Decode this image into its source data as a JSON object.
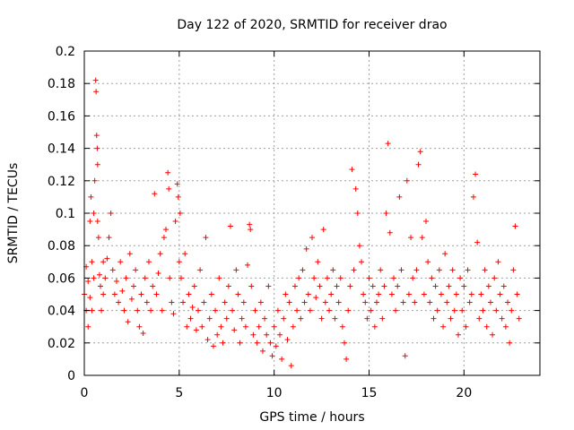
{
  "chart_data": {
    "type": "scatter",
    "title": "Day 122 of 2020, SRMTID for receiver drao",
    "xlabel": "GPS time / hours",
    "ylabel": "SRMTID / TECUs",
    "xlim": [
      0,
      24
    ],
    "ylim": [
      0,
      0.2
    ],
    "xticks": [
      0,
      5,
      10,
      15,
      20
    ],
    "xtick_labels": [
      "0",
      "5",
      "10",
      "15",
      "20"
    ],
    "yticks": [
      0,
      0.02,
      0.04,
      0.06,
      0.08,
      0.1,
      0.12,
      0.14,
      0.16,
      0.18,
      0.2
    ],
    "ytick_labels": [
      "0",
      "0.02",
      "0.04",
      "0.06",
      "0.08",
      "0.1",
      "0.12",
      "0.14",
      "0.16",
      "0.18",
      "0.2"
    ],
    "grid": true,
    "marker": "plus",
    "color": "#ff0000",
    "series": [
      {
        "name": "SRMTID",
        "points": [
          [
            0.0,
            0.05
          ],
          [
            0.1,
            0.04
          ],
          [
            0.1,
            0.067
          ],
          [
            0.2,
            0.058
          ],
          [
            0.2,
            0.03
          ],
          [
            0.3,
            0.095
          ],
          [
            0.3,
            0.048
          ],
          [
            0.35,
            0.11
          ],
          [
            0.4,
            0.07
          ],
          [
            0.4,
            0.04
          ],
          [
            0.5,
            0.1
          ],
          [
            0.5,
            0.06
          ],
          [
            0.55,
            0.12
          ],
          [
            0.6,
            0.182
          ],
          [
            0.62,
            0.175
          ],
          [
            0.65,
            0.148
          ],
          [
            0.68,
            0.14
          ],
          [
            0.7,
            0.13
          ],
          [
            0.7,
            0.095
          ],
          [
            0.75,
            0.085
          ],
          [
            0.8,
            0.062
          ],
          [
            0.85,
            0.055
          ],
          [
            0.9,
            0.04
          ],
          [
            1.0,
            0.07
          ],
          [
            1.0,
            0.05
          ],
          [
            1.1,
            0.06
          ],
          [
            1.2,
            0.072
          ],
          [
            1.3,
            0.085
          ],
          [
            1.4,
            0.1
          ],
          [
            1.5,
            0.065
          ],
          [
            1.6,
            0.05
          ],
          [
            1.7,
            0.058
          ],
          [
            1.8,
            0.045
          ],
          [
            1.9,
            0.07
          ],
          [
            2.0,
            0.052
          ],
          [
            2.1,
            0.04
          ],
          [
            2.2,
            0.06
          ],
          [
            2.3,
            0.033
          ],
          [
            2.4,
            0.075
          ],
          [
            2.5,
            0.047
          ],
          [
            2.6,
            0.055
          ],
          [
            2.7,
            0.065
          ],
          [
            2.8,
            0.04
          ],
          [
            2.9,
            0.03
          ],
          [
            3.0,
            0.05
          ],
          [
            3.1,
            0.026
          ],
          [
            3.2,
            0.06
          ],
          [
            3.3,
            0.045
          ],
          [
            3.4,
            0.07
          ],
          [
            3.5,
            0.04
          ],
          [
            3.6,
            0.055
          ],
          [
            3.7,
            0.112
          ],
          [
            3.8,
            0.05
          ],
          [
            3.9,
            0.063
          ],
          [
            4.0,
            0.075
          ],
          [
            4.1,
            0.04
          ],
          [
            4.2,
            0.085
          ],
          [
            4.3,
            0.09
          ],
          [
            4.4,
            0.125
          ],
          [
            4.45,
            0.115
          ],
          [
            4.5,
            0.06
          ],
          [
            4.6,
            0.045
          ],
          [
            4.7,
            0.038
          ],
          [
            4.8,
            0.095
          ],
          [
            4.9,
            0.118
          ],
          [
            4.95,
            0.11
          ],
          [
            5.0,
            0.07
          ],
          [
            5.05,
            0.1
          ],
          [
            5.1,
            0.06
          ],
          [
            5.2,
            0.045
          ],
          [
            5.3,
            0.075
          ],
          [
            5.4,
            0.03
          ],
          [
            5.5,
            0.05
          ],
          [
            5.6,
            0.035
          ],
          [
            5.7,
            0.042
          ],
          [
            5.8,
            0.055
          ],
          [
            5.9,
            0.028
          ],
          [
            6.0,
            0.04
          ],
          [
            6.1,
            0.065
          ],
          [
            6.2,
            0.03
          ],
          [
            6.3,
            0.045
          ],
          [
            6.4,
            0.085
          ],
          [
            6.5,
            0.022
          ],
          [
            6.6,
            0.035
          ],
          [
            6.7,
            0.05
          ],
          [
            6.8,
            0.018
          ],
          [
            6.9,
            0.04
          ],
          [
            7.0,
            0.025
          ],
          [
            7.1,
            0.06
          ],
          [
            7.2,
            0.03
          ],
          [
            7.3,
            0.02
          ],
          [
            7.4,
            0.045
          ],
          [
            7.5,
            0.035
          ],
          [
            7.6,
            0.055
          ],
          [
            7.7,
            0.092
          ],
          [
            7.8,
            0.04
          ],
          [
            7.9,
            0.028
          ],
          [
            8.0,
            0.065
          ],
          [
            8.1,
            0.05
          ],
          [
            8.2,
            0.02
          ],
          [
            8.3,
            0.035
          ],
          [
            8.4,
            0.045
          ],
          [
            8.5,
            0.03
          ],
          [
            8.6,
            0.068
          ],
          [
            8.7,
            0.093
          ],
          [
            8.75,
            0.09
          ],
          [
            8.8,
            0.055
          ],
          [
            8.9,
            0.025
          ],
          [
            9.0,
            0.04
          ],
          [
            9.1,
            0.02
          ],
          [
            9.2,
            0.03
          ],
          [
            9.3,
            0.045
          ],
          [
            9.4,
            0.015
          ],
          [
            9.5,
            0.035
          ],
          [
            9.6,
            0.025
          ],
          [
            9.7,
            0.055
          ],
          [
            9.8,
            0.02
          ],
          [
            9.9,
            0.012
          ],
          [
            10.0,
            0.03
          ],
          [
            10.1,
            0.018
          ],
          [
            10.2,
            0.04
          ],
          [
            10.3,
            0.025
          ],
          [
            10.4,
            0.01
          ],
          [
            10.5,
            0.035
          ],
          [
            10.6,
            0.05
          ],
          [
            10.7,
            0.022
          ],
          [
            10.8,
            0.045
          ],
          [
            10.9,
            0.006
          ],
          [
            11.0,
            0.03
          ],
          [
            11.1,
            0.055
          ],
          [
            11.2,
            0.04
          ],
          [
            11.3,
            0.06
          ],
          [
            11.4,
            0.035
          ],
          [
            11.5,
            0.065
          ],
          [
            11.6,
            0.045
          ],
          [
            11.7,
            0.078
          ],
          [
            11.8,
            0.05
          ],
          [
            11.9,
            0.04
          ],
          [
            12.0,
            0.085
          ],
          [
            12.1,
            0.06
          ],
          [
            12.2,
            0.048
          ],
          [
            12.3,
            0.07
          ],
          [
            12.4,
            0.055
          ],
          [
            12.5,
            0.035
          ],
          [
            12.6,
            0.09
          ],
          [
            12.7,
            0.045
          ],
          [
            12.8,
            0.06
          ],
          [
            12.9,
            0.04
          ],
          [
            13.0,
            0.05
          ],
          [
            13.1,
            0.065
          ],
          [
            13.2,
            0.035
          ],
          [
            13.3,
            0.055
          ],
          [
            13.4,
            0.045
          ],
          [
            13.5,
            0.06
          ],
          [
            13.6,
            0.03
          ],
          [
            13.7,
            0.02
          ],
          [
            13.8,
            0.01
          ],
          [
            13.9,
            0.04
          ],
          [
            14.0,
            0.055
          ],
          [
            14.1,
            0.127
          ],
          [
            14.2,
            0.065
          ],
          [
            14.3,
            0.115
          ],
          [
            14.4,
            0.1
          ],
          [
            14.5,
            0.08
          ],
          [
            14.6,
            0.07
          ],
          [
            14.7,
            0.05
          ],
          [
            14.8,
            0.045
          ],
          [
            14.9,
            0.035
          ],
          [
            15.0,
            0.06
          ],
          [
            15.1,
            0.04
          ],
          [
            15.2,
            0.055
          ],
          [
            15.3,
            0.03
          ],
          [
            15.4,
            0.045
          ],
          [
            15.5,
            0.05
          ],
          [
            15.6,
            0.065
          ],
          [
            15.7,
            0.035
          ],
          [
            15.8,
            0.055
          ],
          [
            15.9,
            0.1
          ],
          [
            16.0,
            0.143
          ],
          [
            16.1,
            0.088
          ],
          [
            16.2,
            0.05
          ],
          [
            16.3,
            0.06
          ],
          [
            16.4,
            0.04
          ],
          [
            16.5,
            0.055
          ],
          [
            16.6,
            0.11
          ],
          [
            16.7,
            0.065
          ],
          [
            16.8,
            0.045
          ],
          [
            16.9,
            0.012
          ],
          [
            17.0,
            0.12
          ],
          [
            17.1,
            0.05
          ],
          [
            17.2,
            0.085
          ],
          [
            17.3,
            0.06
          ],
          [
            17.4,
            0.045
          ],
          [
            17.5,
            0.065
          ],
          [
            17.6,
            0.13
          ],
          [
            17.7,
            0.138
          ],
          [
            17.8,
            0.085
          ],
          [
            17.9,
            0.05
          ],
          [
            18.0,
            0.095
          ],
          [
            18.1,
            0.07
          ],
          [
            18.2,
            0.045
          ],
          [
            18.3,
            0.06
          ],
          [
            18.4,
            0.035
          ],
          [
            18.5,
            0.055
          ],
          [
            18.6,
            0.04
          ],
          [
            18.7,
            0.065
          ],
          [
            18.8,
            0.05
          ],
          [
            18.9,
            0.03
          ],
          [
            19.0,
            0.075
          ],
          [
            19.1,
            0.045
          ],
          [
            19.2,
            0.055
          ],
          [
            19.3,
            0.035
          ],
          [
            19.4,
            0.065
          ],
          [
            19.5,
            0.04
          ],
          [
            19.6,
            0.05
          ],
          [
            19.7,
            0.025
          ],
          [
            19.8,
            0.06
          ],
          [
            19.9,
            0.04
          ],
          [
            20.0,
            0.055
          ],
          [
            20.1,
            0.03
          ],
          [
            20.2,
            0.065
          ],
          [
            20.3,
            0.045
          ],
          [
            20.4,
            0.05
          ],
          [
            20.5,
            0.11
          ],
          [
            20.6,
            0.124
          ],
          [
            20.7,
            0.082
          ],
          [
            20.8,
            0.035
          ],
          [
            20.9,
            0.05
          ],
          [
            21.0,
            0.04
          ],
          [
            21.1,
            0.065
          ],
          [
            21.2,
            0.03
          ],
          [
            21.3,
            0.055
          ],
          [
            21.4,
            0.045
          ],
          [
            21.5,
            0.025
          ],
          [
            21.6,
            0.06
          ],
          [
            21.7,
            0.04
          ],
          [
            21.8,
            0.07
          ],
          [
            21.9,
            0.05
          ],
          [
            22.0,
            0.035
          ],
          [
            22.1,
            0.055
          ],
          [
            22.2,
            0.03
          ],
          [
            22.3,
            0.045
          ],
          [
            22.4,
            0.02
          ],
          [
            22.5,
            0.04
          ],
          [
            22.6,
            0.065
          ],
          [
            22.7,
            0.092
          ],
          [
            22.8,
            0.05
          ],
          [
            22.9,
            0.035
          ]
        ]
      }
    ]
  }
}
